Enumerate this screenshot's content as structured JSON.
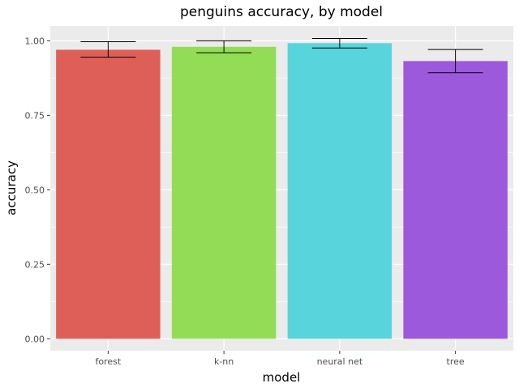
{
  "chart_data": {
    "type": "bar",
    "title": "penguins accuracy, by model",
    "xlabel": "model",
    "ylabel": "accuracy",
    "categories": [
      "forest",
      "k-nn",
      "neural net",
      "tree"
    ],
    "values": [
      0.97,
      0.98,
      0.992,
      0.932
    ],
    "error_low": [
      0.945,
      0.96,
      0.976,
      0.893
    ],
    "error_high": [
      0.997,
      1.0,
      1.008,
      0.971
    ],
    "colors": [
      "#de5f57",
      "#93dd56",
      "#58d4dc",
      "#9d59dc"
    ],
    "ylim": [
      -0.04,
      1.05
    ],
    "yticks": [
      0.0,
      0.25,
      0.5,
      0.75,
      1.0
    ],
    "ytick_labels": [
      "0.00",
      "0.25",
      "0.50",
      "0.75",
      "1.00"
    ],
    "grid": true,
    "legend": "none",
    "panel_background": "#ebebeb",
    "grid_color": "#ffffff"
  }
}
